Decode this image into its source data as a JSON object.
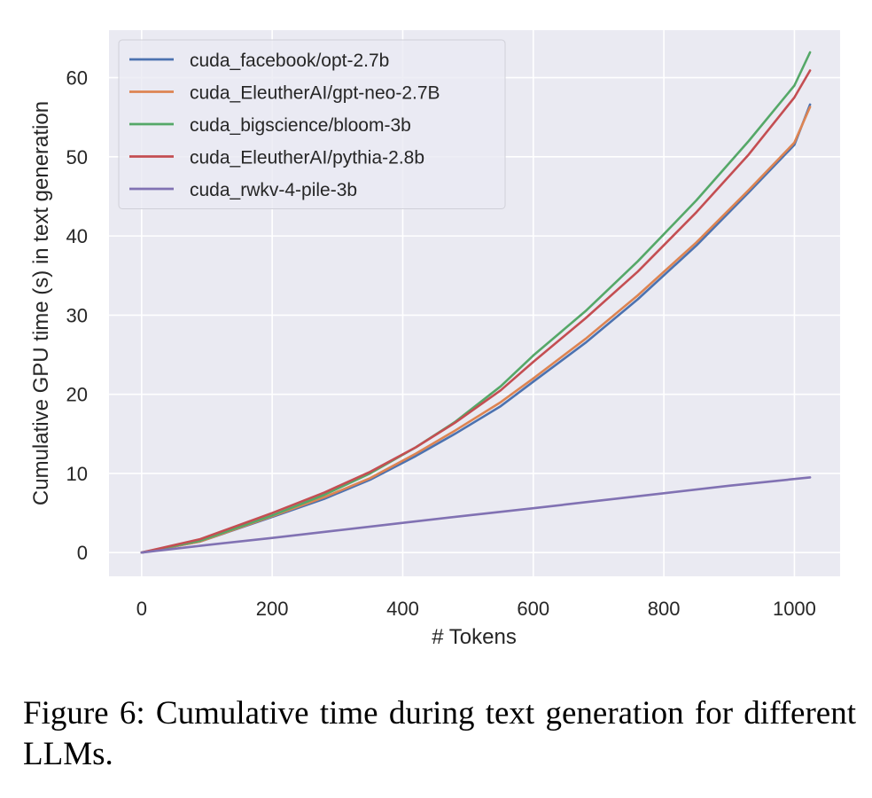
{
  "chart_data": {
    "type": "line",
    "xlabel": "# Tokens",
    "ylabel": "Cumulative GPU time (s) in text generation",
    "xlim": [
      -50,
      1070
    ],
    "ylim": [
      -3,
      66
    ],
    "xticks": [
      0,
      200,
      400,
      600,
      800,
      1000
    ],
    "yticks": [
      0,
      10,
      20,
      30,
      40,
      50,
      60
    ],
    "grid": true,
    "legend_position": "top-left",
    "background": "#eaeaf2",
    "series": [
      {
        "name": "cuda_facebook/opt-2.7b",
        "color": "#4c72b0",
        "x": [
          0,
          90,
          200,
          280,
          350,
          420,
          480,
          550,
          600,
          680,
          760,
          850,
          930,
          1000,
          1024
        ],
        "y": [
          0,
          1.4,
          4.5,
          6.8,
          9.2,
          12.2,
          15,
          18.5,
          21.6,
          26.5,
          32,
          38.8,
          45.5,
          51.5,
          56.6
        ]
      },
      {
        "name": "cuda_EleutherAI/gpt-neo-2.7B",
        "color": "#dd8452",
        "x": [
          0,
          90,
          200,
          280,
          350,
          420,
          480,
          550,
          600,
          680,
          760,
          850,
          930,
          1000,
          1024
        ],
        "y": [
          0,
          1.4,
          4.6,
          7.0,
          9.4,
          12.5,
          15.4,
          19,
          22.0,
          27,
          32.5,
          39.2,
          45.8,
          51.8,
          56.3
        ]
      },
      {
        "name": "cuda_bigscience/bloom-3b",
        "color": "#55a868",
        "x": [
          0,
          90,
          200,
          280,
          350,
          420,
          480,
          550,
          600,
          680,
          760,
          850,
          930,
          1000,
          1024
        ],
        "y": [
          0,
          1.5,
          4.7,
          7.3,
          10.0,
          13.3,
          16.5,
          21,
          24.9,
          30.5,
          36.8,
          44.5,
          52,
          59,
          63.2
        ]
      },
      {
        "name": "cuda_EleutherAI/pythia-2.8b",
        "color": "#c44e52",
        "x": [
          0,
          90,
          200,
          280,
          350,
          420,
          480,
          550,
          600,
          680,
          760,
          850,
          930,
          1000,
          1024
        ],
        "y": [
          0,
          1.7,
          5.0,
          7.6,
          10.2,
          13.3,
          16.4,
          20.5,
          24.1,
          29.6,
          35.5,
          43,
          50.3,
          57.5,
          60.9
        ]
      },
      {
        "name": "cuda_rwkv-4-pile-3b",
        "color": "#8172b3",
        "x": [
          0,
          100,
          200,
          300,
          400,
          500,
          600,
          700,
          800,
          900,
          1024
        ],
        "y": [
          0,
          0.95,
          1.85,
          2.8,
          3.75,
          4.7,
          5.6,
          6.55,
          7.5,
          8.45,
          9.5
        ]
      }
    ]
  },
  "caption": "Figure 6: Cumulative time during text generation for different LLMs."
}
